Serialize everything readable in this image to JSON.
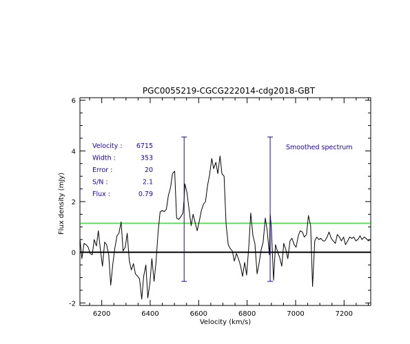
{
  "chart_data": {
    "type": "line",
    "title": "PGC0055219-CGCG222014-cdg2018-GBT",
    "xlabel": "Velocity (km/s)",
    "ylabel": "Flux density (mJy)",
    "xlim": [
      6110,
      7310
    ],
    "ylim": [
      -2.1,
      6.1
    ],
    "x_ticks": [
      6200,
      6400,
      6600,
      6800,
      7000,
      7200
    ],
    "y_ticks": [
      -2,
      0,
      2,
      4,
      6
    ],
    "annotation_label": "Smoothed spectrum",
    "info": [
      {
        "label": "Velocity :",
        "value": "6715"
      },
      {
        "label": "Width :",
        "value": "353"
      },
      {
        "label": "Error :",
        "value": "20"
      },
      {
        "label": "S/N :",
        "value": "2.1"
      },
      {
        "label": "Flux :",
        "value": "0.79"
      }
    ],
    "zero_line": 0,
    "threshold_line": 1.15,
    "markers": [
      {
        "x": 6540,
        "y_low": -1.15,
        "y_high": 4.55
      },
      {
        "x": 6895,
        "y_low": -1.15,
        "y_high": 4.55
      }
    ],
    "colors": {
      "spectrum": "#000000",
      "threshold": "#00cc00",
      "markers": "#1a00b0",
      "text": "#1a00b0"
    },
    "series": [
      {
        "x": [
          6110,
          6118,
          6127,
          6135,
          6144,
          6152,
          6161,
          6169,
          6178,
          6186,
          6195,
          6203,
          6212,
          6220,
          6229,
          6237,
          6246,
          6254,
          6263,
          6271,
          6280,
          6288,
          6297,
          6305,
          6314,
          6322,
          6331,
          6339,
          6348,
          6356,
          6365,
          6373,
          6382,
          6390,
          6399,
          6407,
          6416,
          6424,
          6433,
          6441,
          6450,
          6458,
          6467,
          6475,
          6484,
          6492,
          6501,
          6509,
          6518,
          6526,
          6535,
          6540,
          6543,
          6552,
          6560,
          6569,
          6577,
          6586,
          6594,
          6603,
          6611,
          6620,
          6628,
          6637,
          6645,
          6654,
          6662,
          6671,
          6679,
          6688,
          6696,
          6705,
          6713,
          6722,
          6730,
          6739,
          6747,
          6756,
          6764,
          6773,
          6781,
          6790,
          6798,
          6807,
          6815,
          6824,
          6832,
          6841,
          6849,
          6858,
          6866,
          6875,
          6883,
          6892,
          6895,
          6900,
          6909,
          6917,
          6926,
          6934,
          6943,
          6951,
          6960,
          6968,
          6977,
          6985,
          6994,
          7002,
          7011,
          7019,
          7028,
          7036,
          7045,
          7053,
          7062,
          7070,
          7079,
          7087,
          7096,
          7104,
          7113,
          7121,
          7130,
          7138,
          7147,
          7155,
          7164,
          7172,
          7181,
          7189,
          7198,
          7206,
          7215,
          7223,
          7232,
          7240,
          7249,
          7257,
          7266,
          7274,
          7283,
          7291,
          7300,
          7310
        ],
        "y": [
          0.55,
          -0.25,
          0.35,
          0.3,
          0.2,
          -0.05,
          -0.1,
          0.5,
          0.25,
          0.85,
          0.05,
          -0.55,
          0.4,
          0.3,
          -0.1,
          -1.3,
          -0.45,
          0.15,
          0.65,
          0.75,
          1.2,
          0.05,
          0.2,
          0.75,
          -0.35,
          -0.7,
          -0.45,
          -0.85,
          -0.95,
          -1.05,
          -1.85,
          -0.95,
          -0.5,
          -1.8,
          -1.2,
          -0.25,
          -1.15,
          -0.4,
          0.85,
          1.6,
          1.65,
          1.6,
          1.7,
          2.25,
          2.55,
          3.1,
          3.2,
          1.35,
          1.3,
          1.4,
          1.55,
          2.1,
          2.7,
          2.35,
          1.7,
          1.05,
          1.5,
          1.15,
          0.85,
          1.25,
          1.65,
          1.9,
          2.0,
          2.65,
          3.05,
          3.7,
          3.3,
          3.55,
          3.1,
          3.8,
          3.1,
          3.0,
          1.1,
          0.3,
          0.15,
          0.05,
          -0.35,
          -0.05,
          -0.25,
          -0.55,
          -0.95,
          -0.4,
          -0.9,
          0.25,
          1.55,
          0.65,
          0.35,
          -0.85,
          -0.45,
          0.1,
          0.4,
          1.35,
          0.85,
          -0.1,
          1.5,
          0.95,
          -1.1,
          0.3,
          0.0,
          -0.2,
          -0.55,
          0.35,
          0.1,
          -0.25,
          0.45,
          0.55,
          0.3,
          0.2,
          0.65,
          0.85,
          0.8,
          0.6,
          0.7,
          1.45,
          1.05,
          -1.35,
          0.45,
          0.6,
          0.5,
          0.55,
          0.45,
          0.45,
          0.6,
          0.8,
          0.55,
          0.45,
          0.35,
          0.7,
          0.6,
          0.45,
          0.6,
          0.3,
          0.45,
          0.6,
          0.55,
          0.6,
          0.45,
          0.5,
          0.65,
          0.5,
          0.6,
          0.55,
          0.45,
          0.5
        ]
      }
    ]
  }
}
